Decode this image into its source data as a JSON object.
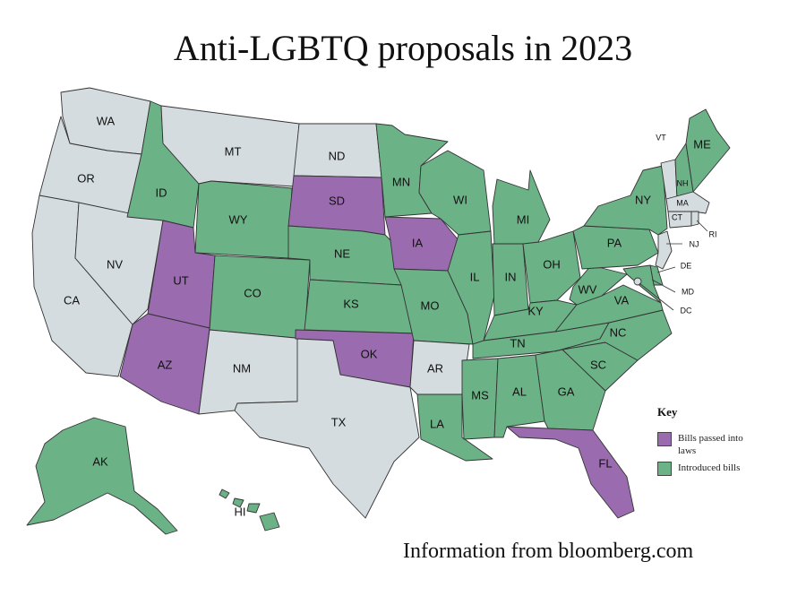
{
  "title": "Anti-LGBTQ proposals in 2023",
  "source": "Information from bloomberg.com",
  "colors": {
    "passed": "#9b6bb0",
    "introduced": "#6cb287",
    "none": "#d5dcdf"
  },
  "key": {
    "title": "Key",
    "passed_label": "Bills passed into laws",
    "introduced_label": "Introduced bills"
  },
  "states": {
    "WA": "none",
    "OR": "none",
    "CA": "none",
    "NV": "none",
    "ID": "introduced",
    "MT": "none",
    "WY": "introduced",
    "UT": "passed",
    "AZ": "passed",
    "CO": "introduced",
    "NM": "none",
    "ND": "none",
    "SD": "passed",
    "NE": "introduced",
    "KS": "introduced",
    "OK": "passed",
    "TX": "none",
    "MN": "introduced",
    "IA": "passed",
    "MO": "introduced",
    "AR": "none",
    "LA": "introduced",
    "WI": "introduced",
    "IL": "introduced",
    "MI": "introduced",
    "IN": "introduced",
    "OH": "introduced",
    "KY": "introduced",
    "TN": "introduced",
    "MS": "introduced",
    "AL": "introduced",
    "GA": "introduced",
    "FL": "passed",
    "SC": "introduced",
    "NC": "introduced",
    "VA": "introduced",
    "WV": "introduced",
    "PA": "introduced",
    "NY": "introduced",
    "VT": "none",
    "NH": "introduced",
    "ME": "introduced",
    "MA": "none",
    "CT": "none",
    "RI": "none",
    "NJ": "none",
    "DE": "introduced",
    "MD": "introduced",
    "DC": "none",
    "AK": "introduced",
    "HI": "introduced"
  }
}
